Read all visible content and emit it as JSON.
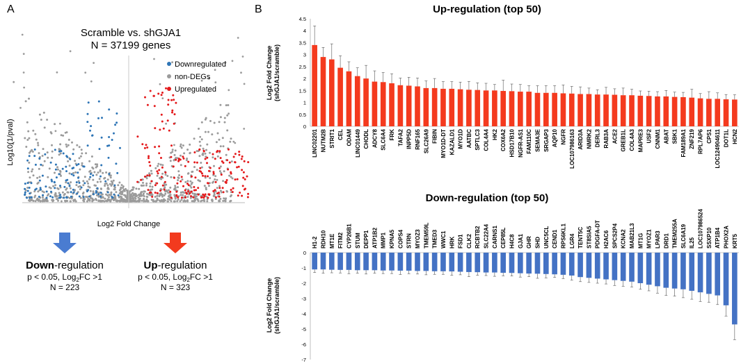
{
  "panels": {
    "a": "A",
    "b": "B"
  },
  "colors": {
    "down": "#2E75B6",
    "non": "#9B9B9B",
    "up": "#E41A1C",
    "bar_up": "#F43A1E",
    "bar_down": "#4472C4",
    "arrow_down": "#4A7CD1",
    "arrow_up": "#F23A1E"
  },
  "volcano": {
    "title_line1": "Scramble vs. shGJA1",
    "title_line2": "N = 37199 genes",
    "xlabel": "Log2 Fold Change",
    "ylabel": "Log10(1/pval)",
    "legend": [
      {
        "label": "Downregulated",
        "color": "#2E75B6"
      },
      {
        "label": "non-DEGs",
        "color": "#9B9B9B"
      },
      {
        "label": "Upregulated",
        "color": "#E41A1C"
      }
    ]
  },
  "summary": {
    "down": {
      "bold": "Down",
      "rest": "-regulation",
      "line1": "p < 0.05, Log",
      "sub": "2",
      "line1b": "FC >1",
      "n": "N = 223"
    },
    "up": {
      "bold": "Up",
      "rest": "-regulation",
      "line1": "p < 0.05, Log",
      "sub": "2",
      "line1b": "FC >1",
      "n": "N = 323"
    }
  },
  "chart_data": [
    {
      "type": "bar",
      "title": "Up-regulation (top 50)",
      "ylabel_line1": "Log2 Fold Change",
      "ylabel_line2": "(shGJA1/scramble)",
      "ylim": [
        0,
        4.5
      ],
      "yticks": [
        "0",
        "0.5",
        "1",
        "1.5",
        "2",
        "2.5",
        "3",
        "3.5",
        "4",
        "4.5"
      ],
      "categories": [
        "LINC02201",
        "NUTM2B",
        "STRIT1",
        "CEL",
        "ODAM",
        "LINC01449",
        "CHODL",
        "ADCY8",
        "SLC6A4",
        "FRK",
        "TAFA2",
        "INPP5D",
        "RNF165",
        "SLC26A9",
        "FIBIN",
        "MYO1D-DT",
        "KAZALD1",
        "MYO1D",
        "AATBC",
        "SPTLC3",
        "COL4A4",
        "HK2",
        "COX6A2",
        "HSD17B10",
        "NGFR-AS1",
        "FAM110C",
        "SEMA3E",
        "SRGAP3",
        "AQP10",
        "NGFR",
        "LOC107986163",
        "ARID3A",
        "NMRK2",
        "DERL3",
        "RAB3A",
        "ACE2",
        "GREB1L",
        "COL4A3",
        "MAPRE3",
        "USF2",
        "CNNM1",
        "ABAT",
        "SBK1",
        "FAM189A1",
        "ZNF219",
        "RPL7AP6",
        "CPS1",
        "LOC124904611",
        "DOT1L",
        "HCN2"
      ],
      "values": [
        3.4,
        2.9,
        2.8,
        2.45,
        2.3,
        2.1,
        2.0,
        1.87,
        1.85,
        1.8,
        1.72,
        1.7,
        1.67,
        1.6,
        1.6,
        1.57,
        1.57,
        1.55,
        1.53,
        1.52,
        1.5,
        1.5,
        1.48,
        1.47,
        1.45,
        1.45,
        1.4,
        1.4,
        1.4,
        1.38,
        1.37,
        1.35,
        1.35,
        1.33,
        1.33,
        1.32,
        1.3,
        1.3,
        1.28,
        1.27,
        1.25,
        1.25,
        1.23,
        1.22,
        1.2,
        1.17,
        1.15,
        1.15,
        1.13,
        1.12
      ],
      "errors": [
        0.8,
        0.4,
        0.65,
        0.5,
        0.4,
        0.35,
        0.55,
        0.45,
        0.4,
        0.4,
        0.3,
        0.35,
        0.35,
        0.3,
        0.4,
        0.3,
        0.3,
        0.3,
        0.35,
        0.3,
        0.3,
        0.25,
        0.45,
        0.3,
        0.3,
        0.25,
        0.3,
        0.3,
        0.3,
        0.35,
        0.3,
        0.3,
        0.25,
        0.2,
        0.3,
        0.25,
        0.3,
        0.25,
        0.2,
        0.2,
        0.2,
        0.25,
        0.2,
        0.2,
        0.35,
        0.2,
        0.3,
        0.25,
        0.2,
        0.2
      ]
    },
    {
      "type": "bar",
      "title": "Down-regulation (top 50)",
      "ylabel_line1": "Log2 Fold Change",
      "ylabel_line2": "(shGJA1/scramble)",
      "ylim": [
        -7,
        0
      ],
      "yticks": [
        "0",
        "-1",
        "-2",
        "-3",
        "-4",
        "-5",
        "-6",
        "-7"
      ],
      "categories": [
        "H1-2",
        "RDH10",
        "MT1E",
        "FITM2",
        "CYP26B1",
        "STUM",
        "DEPP1",
        "ATP1B2",
        "MMP1",
        "KPNA5",
        "COPS4",
        "STRN",
        "MYOZ3",
        "TMEM59L",
        "TMED3",
        "WWC1",
        "HRK",
        "FSD1",
        "CLK2",
        "RCBTB2",
        "SLC22A4",
        "CARNS1",
        "CEP85L",
        "H4C8",
        "GJA1",
        "GHR",
        "SHD",
        "UNC5CL",
        "CEND1",
        "RPS6KL1",
        "LGR4",
        "TENT5C",
        "ST8SIA5",
        "PDGFA-DT",
        "H2AC6",
        "SPCS2P4",
        "KCNA2",
        "MAB21L3",
        "MT1G",
        "MYOZ1",
        "LPAR3",
        "DRD1",
        "TMEM255A",
        "SLC6A19",
        "IL25",
        "LOC107986524",
        "SSXP10",
        "ATP1B4",
        "PHOX2A",
        "KRT5"
      ],
      "values": [
        -1.1,
        -1.1,
        -1.12,
        -1.13,
        -1.13,
        -1.15,
        -1.15,
        -1.15,
        -1.17,
        -1.17,
        -1.18,
        -1.18,
        -1.2,
        -1.2,
        -1.22,
        -1.22,
        -1.23,
        -1.25,
        -1.27,
        -1.28,
        -1.3,
        -1.3,
        -1.32,
        -1.33,
        -1.35,
        -1.37,
        -1.38,
        -1.4,
        -1.42,
        -1.45,
        -1.5,
        -1.6,
        -1.65,
        -1.7,
        -1.75,
        -1.8,
        -1.85,
        -1.9,
        -2.0,
        -2.1,
        -2.2,
        -2.3,
        -2.35,
        -2.4,
        -2.5,
        -2.6,
        -2.7,
        -2.8,
        -3.45,
        -4.7
      ],
      "errors": [
        0.2,
        0.25,
        0.2,
        0.2,
        0.25,
        0.2,
        0.25,
        0.2,
        0.2,
        0.2,
        0.25,
        0.2,
        0.2,
        0.25,
        0.2,
        0.2,
        0.25,
        0.2,
        0.3,
        0.2,
        0.2,
        0.25,
        0.2,
        0.2,
        0.25,
        0.2,
        0.3,
        0.25,
        0.2,
        0.25,
        0.3,
        0.3,
        0.3,
        0.3,
        0.3,
        0.35,
        0.35,
        0.35,
        0.4,
        0.4,
        0.45,
        0.5,
        0.5,
        0.55,
        0.55,
        0.6,
        0.55,
        0.6,
        0.7,
        1.0
      ]
    }
  ]
}
